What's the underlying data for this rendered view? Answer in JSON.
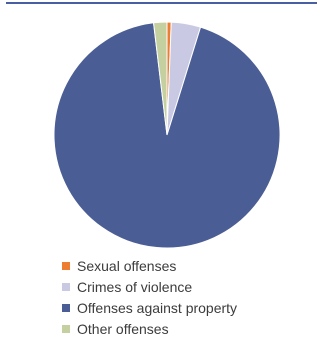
{
  "chart_data": {
    "type": "pie",
    "title": "",
    "slices": [
      {
        "label": "Sexual offenses",
        "value": 0.6,
        "color": "#ed7d31"
      },
      {
        "label": "Crimes of violence",
        "value": 4.2,
        "color": "#c9c9e3"
      },
      {
        "label": "Offenses against property",
        "value": 93.3,
        "color": "#4a5d94"
      },
      {
        "label": "Other offenses",
        "value": 1.9,
        "color": "#c4d0a0"
      }
    ],
    "legend_position": "bottom"
  },
  "legend": {
    "items": [
      {
        "label": "Sexual offenses",
        "color": "#ed7d31"
      },
      {
        "label": "Crimes of violence",
        "color": "#c9c9e3"
      },
      {
        "label": "Offenses against property",
        "color": "#4a5d94"
      },
      {
        "label": "Other offenses",
        "color": "#c4d0a0"
      }
    ]
  },
  "colors": {
    "top_rule": "#4a5fa3"
  }
}
